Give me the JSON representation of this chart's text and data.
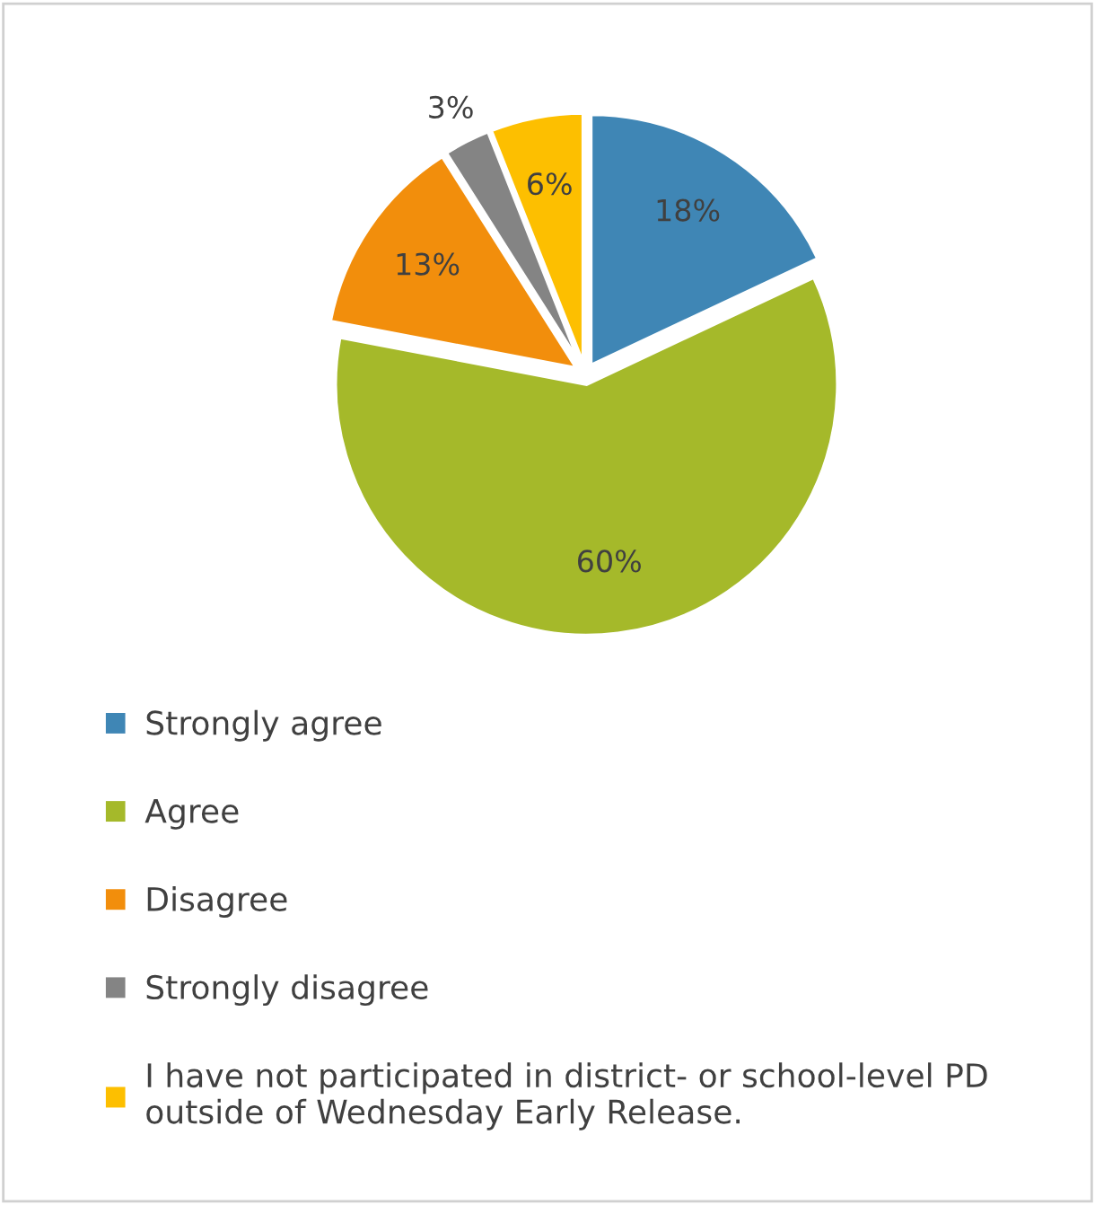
{
  "chart_data": {
    "type": "pie",
    "categories": [
      "Strongly agree",
      "Agree",
      "Disagree",
      "Strongly disagree",
      "I have not participated in district- or school-level PD\noutside of Wednesday Early Release."
    ],
    "values": [
      18,
      60,
      13,
      3,
      6
    ],
    "colors": [
      "#3f86b5",
      "#a5b92a",
      "#f28e0c",
      "#848484",
      "#fdbf00"
    ],
    "value_labels": [
      "18%",
      "60%",
      "13%",
      "3%",
      "6%"
    ],
    "legend": "bottom"
  }
}
